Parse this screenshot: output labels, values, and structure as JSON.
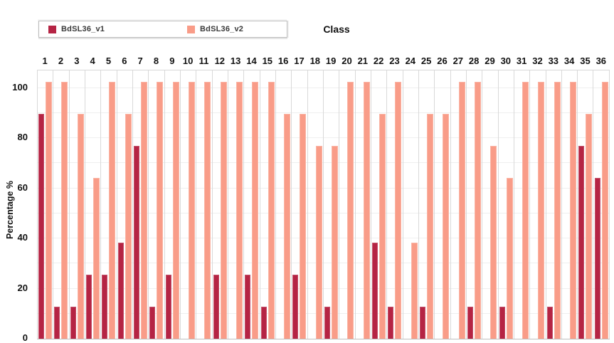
{
  "figure": {
    "axis_title_top": "Class",
    "y_axis_label": "Percentage %"
  },
  "legend": {
    "items": [
      {
        "label": "BdSL36_v1",
        "color": "#b52444"
      },
      {
        "label": "BdSL36_v2",
        "color": "#f99c88"
      }
    ]
  },
  "y_axis": {
    "tick_labels": [
      "0",
      "20",
      "40",
      "60",
      "80",
      "100"
    ]
  },
  "chart_data": {
    "type": "bar",
    "title": "Class",
    "xlabel": "Class",
    "ylabel": "Percentage %",
    "x_axis_position": "top",
    "legend_position": "top-left",
    "grid": "horizontal every 10 units (faint), vertical line between each category",
    "ylim": [
      0,
      106
    ],
    "y_ticks": [
      0,
      20,
      40,
      60,
      80,
      100
    ],
    "categories": [
      "1",
      "2",
      "3",
      "4",
      "5",
      "6",
      "7",
      "8",
      "9",
      "10",
      "11",
      "12",
      "13",
      "14",
      "15",
      "16",
      "17",
      "18",
      "19",
      "20",
      "21",
      "22",
      "23",
      "24",
      "25",
      "26",
      "27",
      "28",
      "29",
      "30",
      "31",
      "32",
      "33",
      "34",
      "35",
      "36"
    ],
    "series": [
      {
        "name": "BdSL36_v1",
        "color": "#b52444",
        "values": [
          87.5,
          12.5,
          12.5,
          25,
          25,
          37.5,
          75,
          12.5,
          25,
          0,
          0,
          25,
          0,
          25,
          12.5,
          0,
          25,
          0,
          12.5,
          0,
          0,
          37.5,
          12.5,
          0,
          12.5,
          0,
          0,
          12.5,
          0,
          12.5,
          0,
          0,
          12.5,
          0,
          75,
          62.5
        ]
      },
      {
        "name": "BdSL36_v2",
        "color": "#f99c88",
        "values": [
          100,
          100,
          87.5,
          62.5,
          100,
          87.5,
          100,
          100,
          100,
          100,
          100,
          100,
          100,
          100,
          100,
          87.5,
          87.5,
          75,
          75,
          100,
          100,
          87.5,
          100,
          37.5,
          87.5,
          87.5,
          100,
          100,
          75,
          62.5,
          100,
          100,
          100,
          100,
          87.5,
          100
        ]
      }
    ]
  }
}
